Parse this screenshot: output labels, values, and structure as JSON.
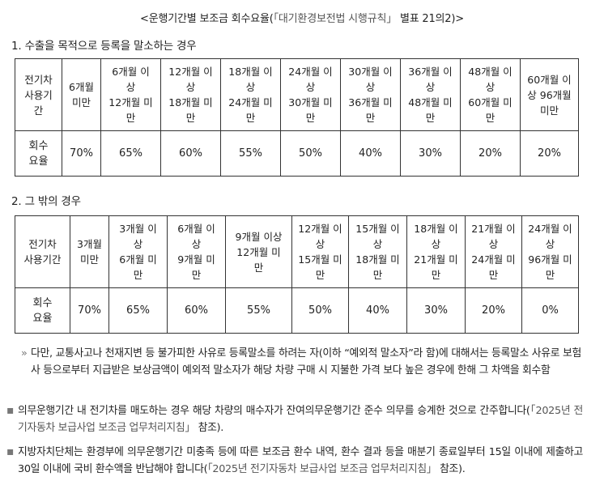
{
  "title": {
    "prefix": "<운행기간별 보조금 회수요율(",
    "ref": "「대기환경보전법 시행규칙」",
    "suffix": " 별표 21의2)>"
  },
  "section1": {
    "heading": "1. 수출을 목적으로 등록을 말소하는 경우",
    "row_header": "전기차\n사용기\n간",
    "value_header": "회수\n요율",
    "periods": [
      "6개월\n미만",
      "6개월 이\n상\n12개월 미\n만",
      "12개월 이\n상\n18개월 미\n만",
      "18개월 이\n상\n24개월 미\n만",
      "24개월 이\n상\n30개월 미\n만",
      "30개월 이\n상\n36개월 미\n만",
      "36개월 이\n상\n48개월 미\n만",
      "48개월 이\n상\n60개월 미\n만",
      "60개월 이\n상 96개월\n미만"
    ],
    "rates": [
      "70%",
      "65%",
      "60%",
      "55%",
      "50%",
      "40%",
      "30%",
      "20%",
      "20%"
    ]
  },
  "section2": {
    "heading": "2. 그 밖의 경우",
    "row_header": "전기차\n사용기간",
    "value_header": "회수\n요율",
    "periods": [
      "3개월\n미만",
      "3개월 이\n상\n6개월 미\n만",
      "6개월 이\n상\n9개월 미\n만",
      "9개월 이상\n12개월 미\n만",
      "12개월 이\n상\n15개월 미\n만",
      "15개월 이\n상\n18개월 미\n만",
      "18개월 이\n상\n21개월 미\n만",
      "21개월 이\n상\n24개월 미\n만",
      "24개월 이\n상\n96개월 미\n만"
    ],
    "rates": [
      "70%",
      "65%",
      "60%",
      "55%",
      "50%",
      "40%",
      "30%",
      "20%",
      "0%"
    ]
  },
  "notes": {
    "exception": {
      "marker": "»",
      "text": "다만, 교통사고나 천재지변 등 불가피한 사유로 등록말소를 하려는 자(이하 “예외적 말소자”라 함)에 대해서는 등록말소 사유로 보험사 등으로부터 지급받은 보상금액이 예외적 말소자가 해당 차량 구매 시 지불한 가격 보다 높은 경우에 한해 그 차액을 회수함"
    },
    "transfer": {
      "marker": "▪",
      "text": "의무운행기간 내 전기차를 매도하는 경우 해당 차량의 매수자가 잔여의무운행기간 준수 의무를 승계한 것으로 간주합니다(",
      "ref": "「2025년 전기자동차 보급사업 보조금 업무처리지침」",
      "suffix": " 참조)."
    },
    "local": {
      "marker": "▪",
      "text": "지방자치단체는 환경부에 의무운행기간 미충족 등에 따른 보조금 환수 내역, 환수 결과 등을 매분기 종료일부터 15일 이내에 제출하고 30일 이내에 국비 환수액을 반납해야 합니다(",
      "ref": "「2025년 전기자동차 보급사업 보조금 업무처리지침」",
      "suffix": " 참조)."
    }
  }
}
